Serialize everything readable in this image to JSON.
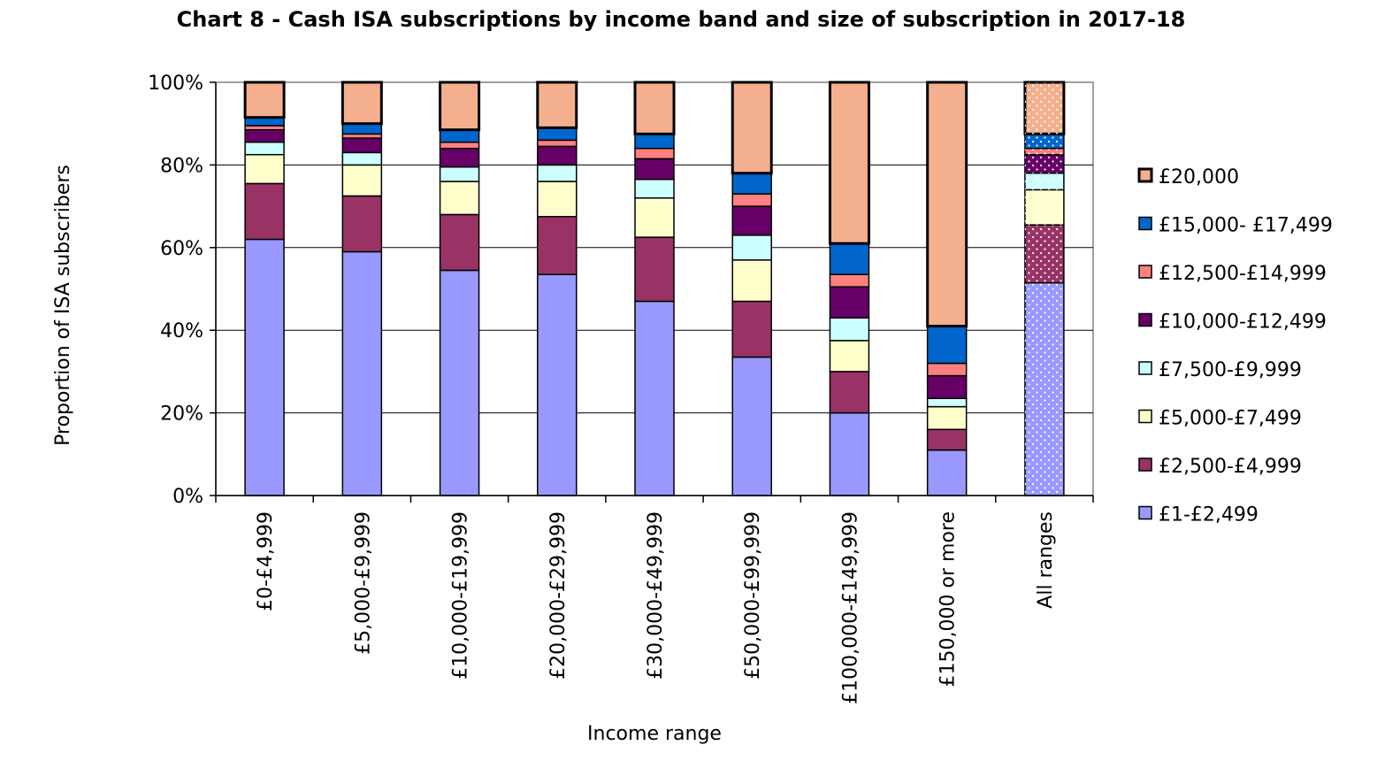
{
  "chart_data": {
    "type": "bar",
    "stacked": true,
    "percent": true,
    "title": "Chart 8 - Cash ISA subscriptions  by income band and size of subscription  in 2017-18",
    "xlabel": "Income range",
    "ylabel": "Proportion of ISA subscribers",
    "ylim": [
      0,
      100
    ],
    "yticks": [
      "0%",
      "20%",
      "40%",
      "60%",
      "80%",
      "100%"
    ],
    "grid": true,
    "legend_position": "right",
    "categories": [
      "£0-£4,999",
      "£5,000-£9,999",
      "£10,000-£19,999",
      "£20,000-£29,999",
      "£30,000-£49,999",
      "£50,000-£99,999",
      "£100,000-£149,999",
      "£150,000 or more",
      "All ranges"
    ],
    "series": [
      {
        "name": "£1-£2,499",
        "color": "#9999ff",
        "values": [
          62,
          59,
          54.5,
          53.5,
          47,
          33.5,
          20,
          11,
          51.5
        ]
      },
      {
        "name": "£2,500-£4,999",
        "color": "#993366",
        "values": [
          13.5,
          13.5,
          13.5,
          14,
          15.5,
          13.5,
          10,
          5,
          14
        ]
      },
      {
        "name": "£5,000-£7,499",
        "color": "#ffffcc",
        "values": [
          7,
          7.5,
          8,
          8.5,
          9.5,
          10,
          7.5,
          5.5,
          8.5
        ]
      },
      {
        "name": "£7,500-£9,999",
        "color": "#ccffff",
        "values": [
          3,
          3,
          3.5,
          4,
          4.5,
          6,
          5.5,
          2,
          4
        ]
      },
      {
        "name": "£10,000-£12,499",
        "color": "#660066",
        "values": [
          3,
          3.5,
          4.5,
          4.5,
          5,
          7,
          7.5,
          5.5,
          4.5
        ]
      },
      {
        "name": "£12,500-£14,999",
        "color": "#ff8080",
        "values": [
          1,
          1,
          1.5,
          1.5,
          2.5,
          3,
          3,
          3,
          1.5
        ]
      },
      {
        "name": "£15,000- £17,499",
        "color": "#0066cc",
        "values": [
          2,
          2.5,
          3,
          3,
          3.5,
          5,
          7.5,
          9,
          3.5
        ]
      },
      {
        "name": "£20,000",
        "color": "#f4b08e",
        "values": [
          8.5,
          10,
          11.5,
          11,
          12.5,
          22,
          39,
          59,
          12.5
        ]
      }
    ],
    "dotted_category": "All ranges"
  }
}
